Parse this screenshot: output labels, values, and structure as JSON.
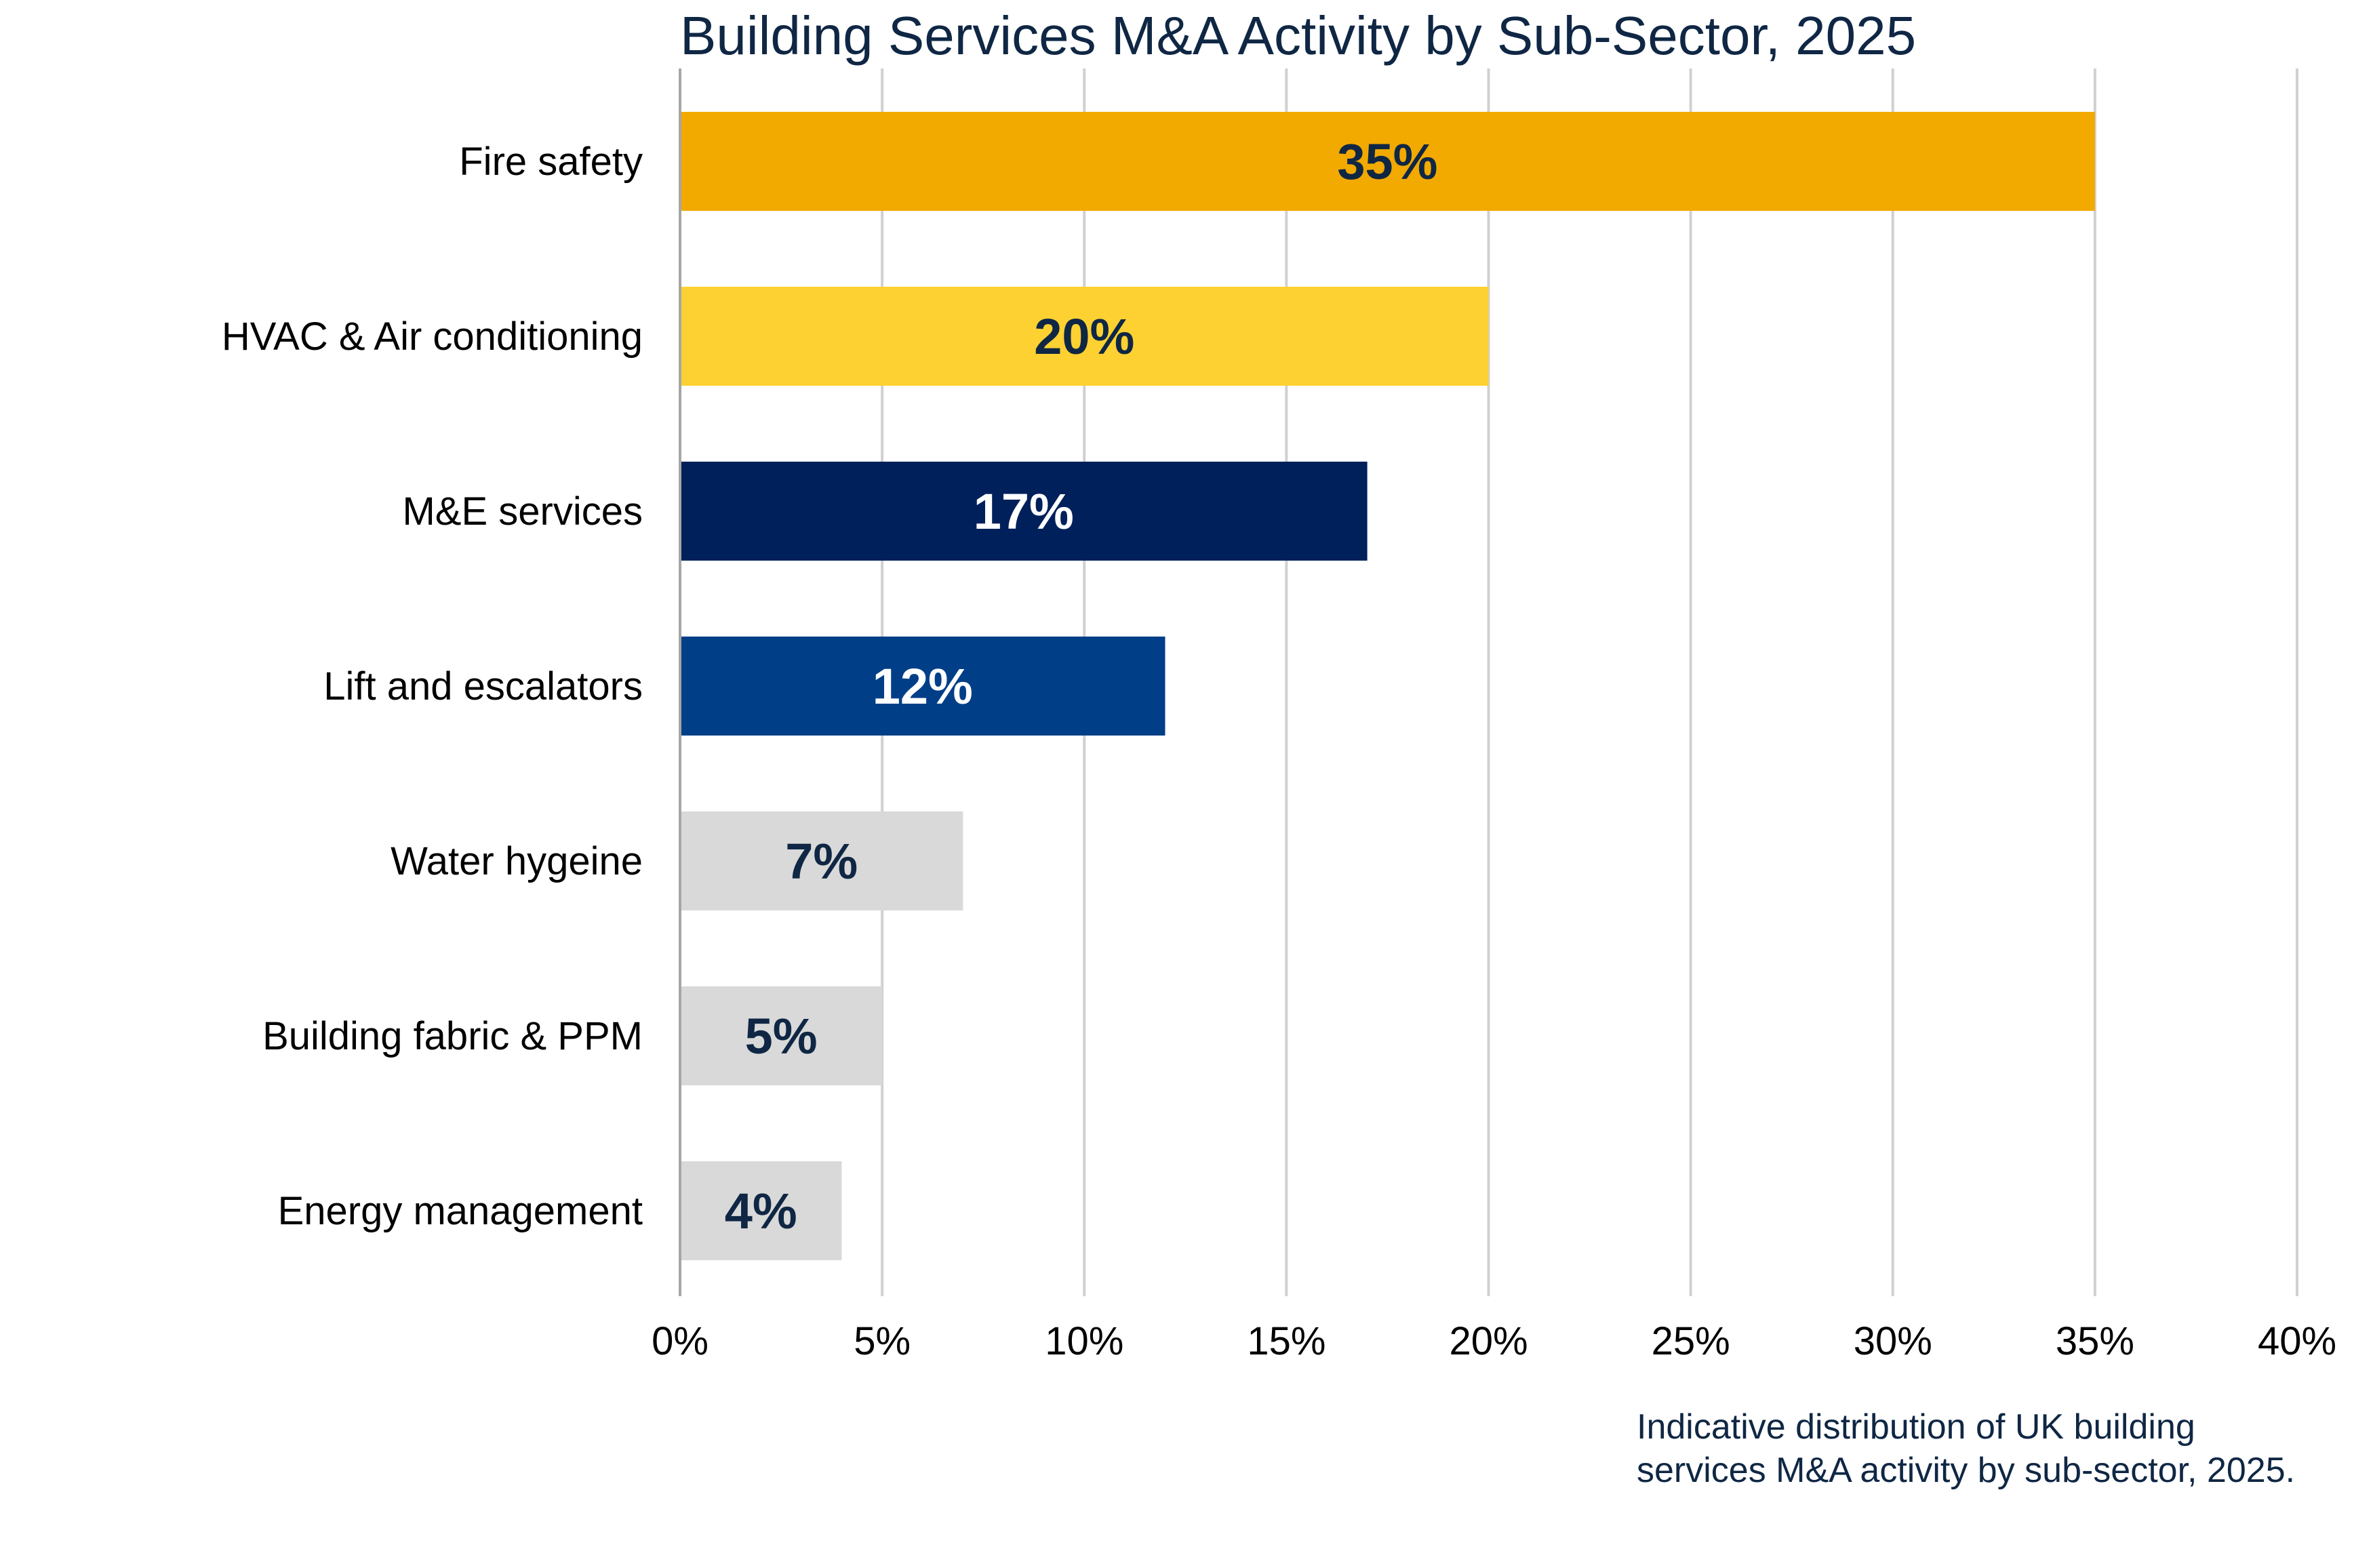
{
  "chart_data": {
    "type": "bar",
    "orientation": "horizontal",
    "title": "Building Services M&A Activity by Sub-Sector, 2025",
    "categories": [
      "Fire safety",
      "HVAC & Air conditioning",
      "M&E services",
      "Lift and escalators",
      "Water hygeine",
      "Building fabric & PPM",
      "Energy management"
    ],
    "values": [
      35,
      20,
      17,
      12,
      7,
      5,
      4
    ],
    "data_labels": [
      "35%",
      "20%",
      "17%",
      "12%",
      "7%",
      "5%",
      "4%"
    ],
    "bar_colors": [
      "#F2A900",
      "#FDD131",
      "#00205B",
      "#003F87",
      "#D9D9D9",
      "#D9D9D9",
      "#D9D9D9"
    ],
    "label_colors": [
      "#0F2744",
      "#0F2744",
      "#FFFFFF",
      "#FFFFFF",
      "#0F2744",
      "#0F2744",
      "#0F2744"
    ],
    "xlim": [
      0,
      40
    ],
    "x_ticks": [
      0,
      5,
      10,
      15,
      20,
      25,
      30,
      35,
      40
    ],
    "x_tick_labels": [
      "0%",
      "5%",
      "10%",
      "15%",
      "20%",
      "25%",
      "30%",
      "35%",
      "40%"
    ],
    "xlabel": "",
    "ylabel": "",
    "grid": "vertical",
    "legend": "none",
    "caption": [
      "Indicative distribution of UK building",
      "services M&A activity by sub-sector, 2025."
    ],
    "title_color": "#0F2744"
  }
}
